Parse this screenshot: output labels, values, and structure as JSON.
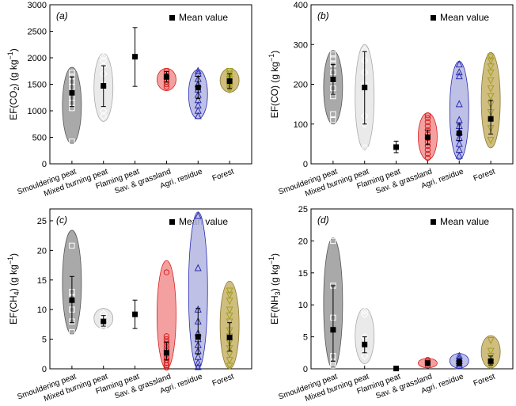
{
  "legend_label": "Mean value",
  "categories": [
    "Smouldering peat",
    "Mixed burning peat",
    "Flaming peat",
    "Sav. & grassland",
    "Agri. residue",
    "Forest"
  ],
  "colors": {
    "Smouldering peat": {
      "fill": "#9a9a9a",
      "stroke": "#555555",
      "marker": "#ffffff",
      "shape": "square"
    },
    "Mixed burning peat": {
      "fill": "#e6e6e6",
      "stroke": "#aaaaaa",
      "marker": "#ffffff",
      "shape": "diamond"
    },
    "Flaming peat": {
      "fill": "none",
      "stroke": "none",
      "marker": "#000000",
      "shape": "none"
    },
    "Sav. & grassland": {
      "fill": "#f28f8f",
      "stroke": "#d62020",
      "marker": "#d62020",
      "shape": "circle"
    },
    "Agri. residue": {
      "fill": "#b3b6e0",
      "stroke": "#2b2bb0",
      "marker": "#2b2bb0",
      "shape": "triangle"
    },
    "Forest": {
      "fill": "#c8b26a",
      "stroke": "#8a7a30",
      "marker": "#a0a020",
      "shape": "triangle-down"
    }
  },
  "chart_data": [
    {
      "type": "scatter",
      "panel": "(a)",
      "ylabel_main": "EF(CO",
      "ylabel_sub": "2",
      "ylabel_tail": ") (g kg",
      "ylabel_sup": "−1",
      "ylabel_end": ")",
      "ylim": [
        0,
        3000
      ],
      "yticks": [
        0,
        500,
        1000,
        1500,
        2000,
        2500,
        3000
      ],
      "series": [
        {
          "category": "Smouldering peat",
          "range": [
            380,
            1820
          ],
          "points": [
            420,
            1050,
            1150,
            1250,
            1350,
            1450,
            1550,
            1650,
            1720
          ],
          "mean": 1340,
          "err": [
            1080,
            1640
          ]
        },
        {
          "category": "Mixed burning peat",
          "range": [
            800,
            2080
          ],
          "points": [
            900,
            1000,
            1500,
            1700,
            1850,
            1950,
            2020
          ],
          "mean": 1470,
          "err": [
            1080,
            1850
          ]
        },
        {
          "category": "Flaming peat",
          "range": null,
          "points": [],
          "mean": 2020,
          "err": [
            1460,
            2570
          ]
        },
        {
          "category": "Sav. & grassland",
          "range": [
            1380,
            1800
          ],
          "points": [
            1450,
            1500,
            1550,
            1600,
            1650,
            1700,
            1750
          ],
          "mean": 1640,
          "err": [
            1540,
            1740
          ]
        },
        {
          "category": "Agri. residue",
          "range": [
            850,
            1780
          ],
          "points": [
            900,
            1000,
            1100,
            1200,
            1300,
            1400,
            1500,
            1600,
            1700,
            1750
          ],
          "mean": 1440,
          "err": [
            1230,
            1650
          ]
        },
        {
          "category": "Forest",
          "range": [
            1350,
            1800
          ],
          "points": [
            1400,
            1450,
            1500,
            1550,
            1600,
            1650,
            1700,
            1750
          ],
          "mean": 1560,
          "err": [
            1420,
            1700
          ]
        }
      ]
    },
    {
      "type": "scatter",
      "panel": "(b)",
      "ylabel_main": "EF(CO) (g kg",
      "ylabel_sub": "",
      "ylabel_tail": "",
      "ylabel_sup": "−1",
      "ylabel_end": ")",
      "ylim": [
        0,
        400
      ],
      "yticks": [
        0,
        100,
        200,
        300,
        400
      ],
      "series": [
        {
          "category": "Smouldering peat",
          "range": [
            100,
            285
          ],
          "points": [
            110,
            125,
            170,
            190,
            210,
            230,
            250,
            265,
            275
          ],
          "mean": 212,
          "err": [
            175,
            250
          ]
        },
        {
          "category": "Mixed burning peat",
          "range": [
            35,
            300
          ],
          "points": [
            40,
            100,
            120,
            200,
            230,
            260,
            285
          ],
          "mean": 192,
          "err": [
            100,
            282
          ]
        },
        {
          "category": "Flaming peat",
          "range": null,
          "points": [],
          "mean": 42,
          "err": [
            28,
            57
          ]
        },
        {
          "category": "Sav. & grassland",
          "range": [
            10,
            128
          ],
          "points": [
            15,
            25,
            35,
            45,
            55,
            65,
            75,
            85,
            95,
            105,
            115,
            122
          ],
          "mean": 67,
          "err": [
            48,
            85
          ]
        },
        {
          "category": "Agri. residue",
          "range": [
            10,
            258
          ],
          "points": [
            20,
            35,
            50,
            65,
            80,
            95,
            110,
            150,
            220,
            230,
            250
          ],
          "mean": 77,
          "err": [
            58,
            100
          ]
        },
        {
          "category": "Forest",
          "range": [
            40,
            280
          ],
          "points": [
            60,
            90,
            130,
            150,
            170,
            190,
            210,
            230,
            245,
            260,
            270
          ],
          "mean": 113,
          "err": [
            75,
            160
          ]
        }
      ]
    },
    {
      "type": "scatter",
      "panel": "(c)",
      "ylabel_main": "EF(CH",
      "ylabel_sub": "4",
      "ylabel_tail": ") (g kg",
      "ylabel_sup": "−1",
      "ylabel_end": ")",
      "ylim": [
        0,
        27
      ],
      "yticks": [
        0,
        5,
        10,
        15,
        20,
        25
      ],
      "series": [
        {
          "category": "Smouldering peat",
          "range": [
            5.8,
            23.4
          ],
          "points": [
            6.2,
            8,
            10,
            12,
            13,
            20.8
          ],
          "mean": 11.6,
          "err": [
            7.8,
            15.6
          ]
        },
        {
          "category": "Mixed burning peat",
          "range": [
            6.8,
            10.2
          ],
          "points": [
            7,
            7.6,
            8.2,
            8.8,
            9.3
          ],
          "mean": 8.0,
          "err": [
            7.2,
            9.0
          ]
        },
        {
          "category": "Flaming peat",
          "range": null,
          "points": [],
          "mean": 9.2,
          "err": [
            6.8,
            11.6
          ]
        },
        {
          "category": "Sav. & grassland",
          "range": [
            0,
            18.3
          ],
          "points": [
            0.2,
            0.6,
            1.0,
            1.5,
            2.0,
            2.5,
            3.0,
            3.5,
            4.0,
            4.5,
            5.0,
            5.5,
            16.3
          ],
          "mean": 2.7,
          "err": [
            1.5,
            4.5
          ]
        },
        {
          "category": "Agri. residue",
          "range": [
            0,
            26.5
          ],
          "points": [
            0.3,
            1,
            2,
            3,
            4,
            5,
            6,
            8,
            10,
            17,
            25.8
          ],
          "mean": 5.4,
          "err": [
            2.5,
            10.2
          ]
        },
        {
          "category": "Forest",
          "range": [
            0,
            14.8
          ],
          "points": [
            0.5,
            1.5,
            2.5,
            3.5,
            4.5,
            5.5,
            6.5,
            8,
            9,
            10,
            11.5,
            12.5,
            13.2
          ],
          "mean": 5.3,
          "err": [
            3,
            7.8
          ]
        }
      ]
    },
    {
      "type": "scatter",
      "panel": "(d)",
      "ylabel_main": "EF(NH",
      "ylabel_sub": "3",
      "ylabel_tail": ") (g kg",
      "ylabel_sup": "−1",
      "ylabel_end": ")",
      "ylim": [
        0,
        25
      ],
      "yticks": [
        0,
        5,
        10,
        15,
        20,
        25
      ],
      "series": [
        {
          "category": "Smouldering peat",
          "range": [
            0,
            20.5
          ],
          "points": [
            0.5,
            1,
            2,
            8,
            13,
            20
          ],
          "mean": 6.1,
          "err": [
            1.2,
            13
          ]
        },
        {
          "category": "Mixed burning peat",
          "range": [
            0.8,
            9.5
          ],
          "points": [
            2,
            4,
            5,
            8.5,
            9
          ],
          "mean": 3.8,
          "err": [
            2.5,
            5.0
          ]
        },
        {
          "category": "Flaming peat",
          "range": null,
          "points": [],
          "mean": 0.05,
          "err": [
            0,
            0.1
          ]
        },
        {
          "category": "Sav. & grassland",
          "range": [
            0.2,
            1.6
          ],
          "points": [
            0.5,
            0.8,
            1.0,
            1.2,
            1.4
          ],
          "mean": 0.9,
          "err": [
            0.6,
            1.2
          ]
        },
        {
          "category": "Agri. residue",
          "range": [
            0.1,
            2.4
          ],
          "points": [
            0.4,
            0.8,
            1.2,
            1.6,
            2.0
          ],
          "mean": 1.0,
          "err": [
            0.5,
            1.5
          ]
        },
        {
          "category": "Forest",
          "range": [
            0.1,
            5.2
          ],
          "points": [
            0.5,
            1,
            2,
            2.8,
            4.5
          ],
          "mean": 1.2,
          "err": [
            0.6,
            2.0
          ]
        }
      ]
    }
  ]
}
